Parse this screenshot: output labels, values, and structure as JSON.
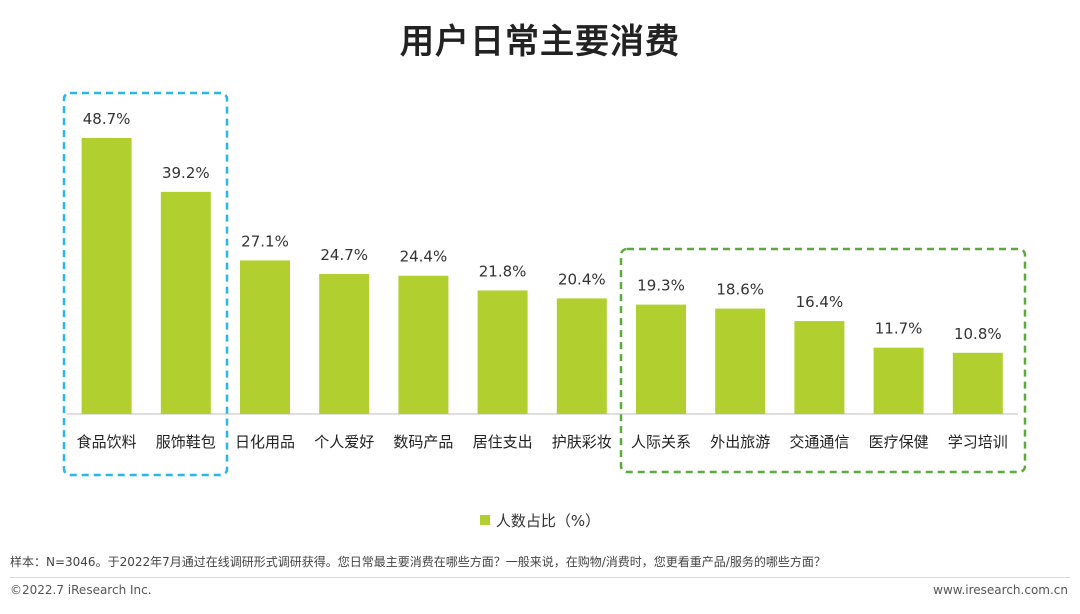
{
  "page": {
    "title": "用户日常主要消费",
    "note": "样本：N=3046。于2022年7月通过在线调研形式调研获得。您日常最主要消费在哪些方面？一般来说，在购物/消费时，您更看重产品/服务的哪些方面？",
    "copyright": "©2022.7 iResearch Inc.",
    "website": "www.iresearch.com.cn"
  },
  "colors": {
    "bar": "#b1d030",
    "highlight_left": "#29b6e8",
    "highlight_right": "#5aaa3c",
    "axis": "#bfbfbf"
  },
  "chart_data": {
    "type": "bar",
    "title": "用户日常主要消费",
    "categories": [
      "食品饮料",
      "服饰鞋包",
      "日化用品",
      "个人爱好",
      "数码产品",
      "居住支出",
      "护肤彩妆",
      "人际关系",
      "外出旅游",
      "交通通信",
      "医疗保健",
      "学习培训"
    ],
    "series": [
      {
        "name": "人数占比（%）",
        "values": [
          48.7,
          39.2,
          27.1,
          24.7,
          24.4,
          21.8,
          20.4,
          19.3,
          18.6,
          16.4,
          11.7,
          10.8
        ]
      }
    ],
    "value_labels": [
      "48.7%",
      "39.2%",
      "27.1%",
      "24.7%",
      "24.4%",
      "21.8%",
      "20.4%",
      "19.3%",
      "18.6%",
      "16.4%",
      "11.7%",
      "10.8%"
    ],
    "ylim": [
      0,
      50
    ],
    "grid": false,
    "legend_position": "bottom",
    "highlight_groups": [
      {
        "from": 0,
        "to": 1,
        "style": "dashed",
        "color": "#29b6e8"
      },
      {
        "from": 7,
        "to": 11,
        "style": "dashed",
        "color": "#5aaa3c"
      }
    ]
  }
}
